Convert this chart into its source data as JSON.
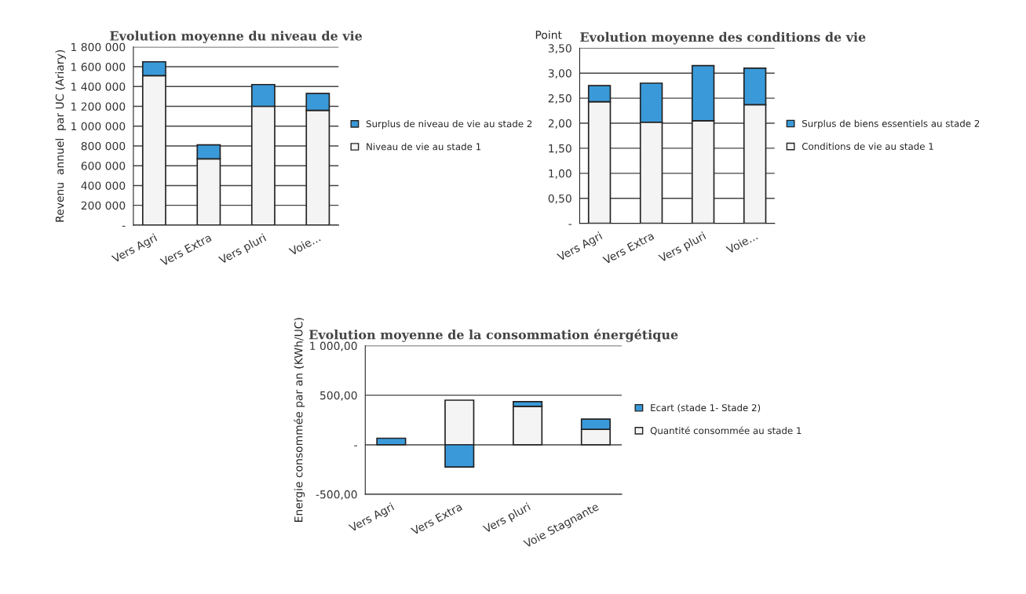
{
  "chart_data": [
    {
      "type": "bar",
      "title": "Evolution moyenne du niveau de vie",
      "ylabel": "Revenu  annuel  par UC (Ariary)",
      "categories": [
        "Vers Agri",
        "Vers Extra",
        "Vers pluri",
        "Voie..."
      ],
      "stacked": true,
      "legend": "right",
      "grid": "y",
      "ylim": [
        0,
        1800000
      ],
      "yticks": [
        {
          "value": 0,
          "label": "-"
        },
        {
          "value": 200000,
          "label": "200 000"
        },
        {
          "value": 400000,
          "label": "400 000"
        },
        {
          "value": 600000,
          "label": "600 000"
        },
        {
          "value": 800000,
          "label": "800 000"
        },
        {
          "value": 1000000,
          "label": "1 000 000"
        },
        {
          "value": 1200000,
          "label": "1 200 000"
        },
        {
          "value": 1400000,
          "label": "1 400 000"
        },
        {
          "value": 1600000,
          "label": "1 600 000"
        },
        {
          "value": 1800000,
          "label": "1 800 000"
        }
      ],
      "series": [
        {
          "name": "Niveau de vie au stade 1",
          "color": "#f4f4f4",
          "values": [
            1510000,
            670000,
            1200000,
            1160000
          ]
        },
        {
          "name": "Surplus de niveau de vie au stade 2",
          "color": "#3a9ad9",
          "values": [
            140000,
            140000,
            220000,
            170000
          ]
        }
      ]
    },
    {
      "type": "bar",
      "title": "Evolution moyenne des conditions de vie",
      "ylabel": "Point",
      "categories": [
        "Vers Agri",
        "Vers Extra",
        "Vers pluri",
        "Voie..."
      ],
      "stacked": true,
      "legend": "right",
      "grid": "y",
      "ylim": [
        0,
        3.5
      ],
      "yticks": [
        {
          "value": 0,
          "label": "-"
        },
        {
          "value": 0.5,
          "label": "0,50"
        },
        {
          "value": 1.0,
          "label": "1,00"
        },
        {
          "value": 1.5,
          "label": "1,50"
        },
        {
          "value": 2.0,
          "label": "2,00"
        },
        {
          "value": 2.5,
          "label": "2,50"
        },
        {
          "value": 3.0,
          "label": "3,00"
        },
        {
          "value": 3.5,
          "label": "3,50"
        }
      ],
      "series": [
        {
          "name": "Conditions de vie au stade 1",
          "color": "#f4f4f4",
          "values": [
            2.43,
            2.02,
            2.05,
            2.37
          ]
        },
        {
          "name": "Surplus de biens essentiels au stade 2",
          "color": "#3a9ad9",
          "values": [
            0.32,
            0.78,
            1.1,
            0.73
          ]
        }
      ]
    },
    {
      "type": "bar",
      "title": "Evolution moyenne de la consommation énergétique",
      "ylabel": "Energie consommée par an (KWh/UC)",
      "categories": [
        "Vers Agri",
        "Vers Extra",
        "Vers pluri",
        "Voie Stagnante"
      ],
      "stacked": true,
      "legend": "right",
      "grid": "y",
      "ylim": [
        -500,
        1000
      ],
      "yticks": [
        {
          "value": -500,
          "label": "-500,00"
        },
        {
          "value": 0,
          "label": "-"
        },
        {
          "value": 500,
          "label": "500,00"
        },
        {
          "value": 1000,
          "label": "1 000,00"
        }
      ],
      "series": [
        {
          "name": "Quantité consommée au stade 1",
          "color": "#f4f4f4",
          "values": [
            null,
            450,
            387,
            155
          ]
        },
        {
          "name": "Ecart (stade 1- Stade 2)",
          "color": "#3a9ad9",
          "values": [
            65,
            -225,
            48,
            103
          ]
        }
      ]
    }
  ]
}
